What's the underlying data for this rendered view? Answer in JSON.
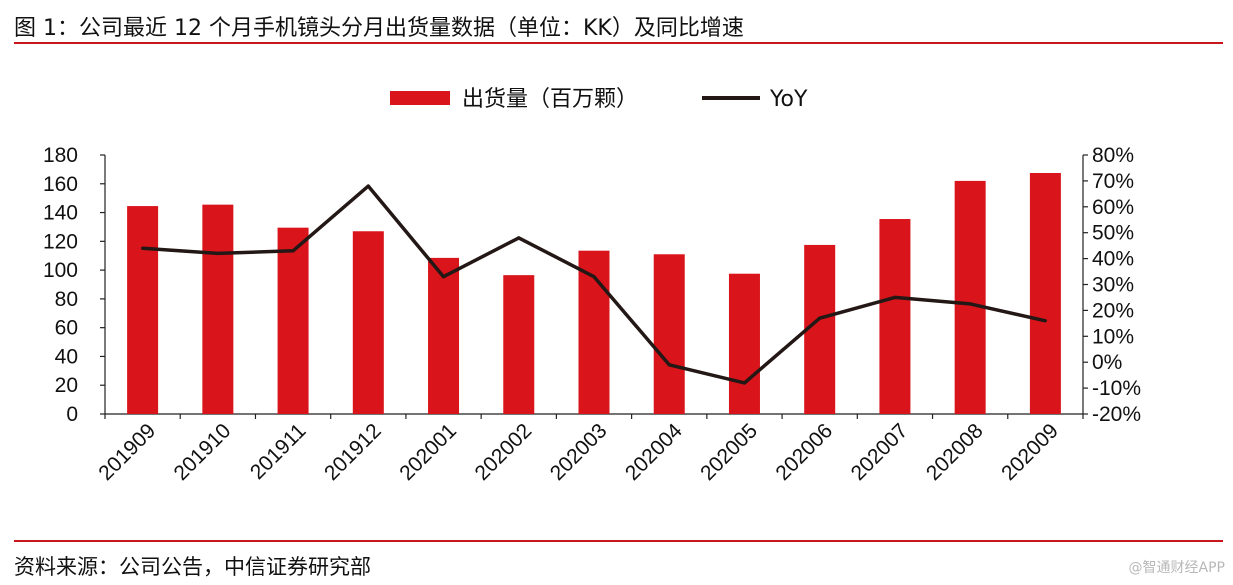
{
  "header": {
    "title": "图 1：公司最近 12 个月手机镜头分月出货量数据（单位：KK）及同比增速"
  },
  "footer": {
    "source": "资料来源：公司公告，中信证券研究部",
    "watermark": "@智通财经APP"
  },
  "colors": {
    "bar": "#d9141b",
    "line": "#231815",
    "rule": "#c8161d"
  },
  "chart_data": {
    "type": "bar",
    "categories": [
      "201909",
      "201910",
      "201911",
      "201912",
      "202001",
      "202002",
      "202003",
      "202004",
      "202005",
      "202006",
      "202007",
      "202008",
      "202009"
    ],
    "series": [
      {
        "name": "出货量（百万颗）",
        "type": "bar",
        "axis": "left",
        "values": [
          144.5,
          145.5,
          129.5,
          127,
          108.5,
          96.5,
          113.5,
          111,
          97.5,
          117.5,
          135.5,
          162,
          167.5
        ]
      },
      {
        "name": "YoY",
        "type": "line",
        "axis": "right",
        "values": [
          44,
          42,
          43,
          68,
          33,
          48,
          33,
          -1,
          -8,
          17,
          25,
          22.5,
          16
        ]
      }
    ],
    "y_left": {
      "min": 0,
      "max": 180,
      "step": 20,
      "ticks": [
        "0",
        "20",
        "40",
        "60",
        "80",
        "100",
        "120",
        "140",
        "160",
        "180"
      ]
    },
    "y_right": {
      "min": -20,
      "max": 80,
      "step": 10,
      "ticks": [
        "-20%",
        "-10%",
        "0%",
        "10%",
        "20%",
        "30%",
        "40%",
        "50%",
        "60%",
        "70%",
        "80%"
      ]
    },
    "legend": {
      "position": "top-center"
    },
    "grid": false
  }
}
